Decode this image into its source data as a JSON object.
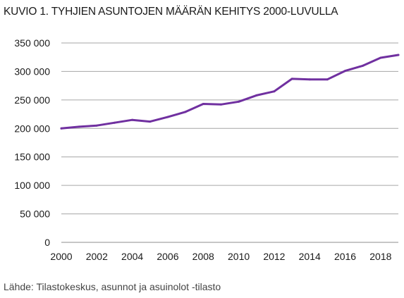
{
  "chart_data": {
    "type": "line",
    "title": "KUVIO 1. TYHJIEN ASUNTOJEN MÄÄRÄN KEHITYS 2000-LUVULLA",
    "source": "Lähde: Tilastokeskus, asunnot ja asuinolot -tilasto",
    "x": [
      2000,
      2001,
      2002,
      2003,
      2004,
      2005,
      2006,
      2007,
      2008,
      2009,
      2010,
      2011,
      2012,
      2013,
      2014,
      2015,
      2016,
      2017,
      2018,
      2019
    ],
    "series": [
      {
        "values": [
          200000,
          203000,
          205000,
          210000,
          215000,
          212000,
          220000,
          229000,
          243000,
          242000,
          247000,
          258000,
          265000,
          287000,
          286000,
          286000,
          301000,
          310000,
          324000,
          329000
        ]
      }
    ],
    "x_tick_labels": [
      "2000",
      "2002",
      "2004",
      "2006",
      "2008",
      "2010",
      "2012",
      "2014",
      "2016",
      "2018"
    ],
    "y_tick_labels": [
      "0",
      "50 000",
      "100 000",
      "150 000",
      "200 000",
      "250 000",
      "300 000",
      "350 000"
    ],
    "xlim": [
      2000,
      2019
    ],
    "ylim": [
      0,
      350000
    ],
    "grid": "horizontal",
    "line_color": "#7030a0",
    "grid_color": "#a6a6a6"
  }
}
